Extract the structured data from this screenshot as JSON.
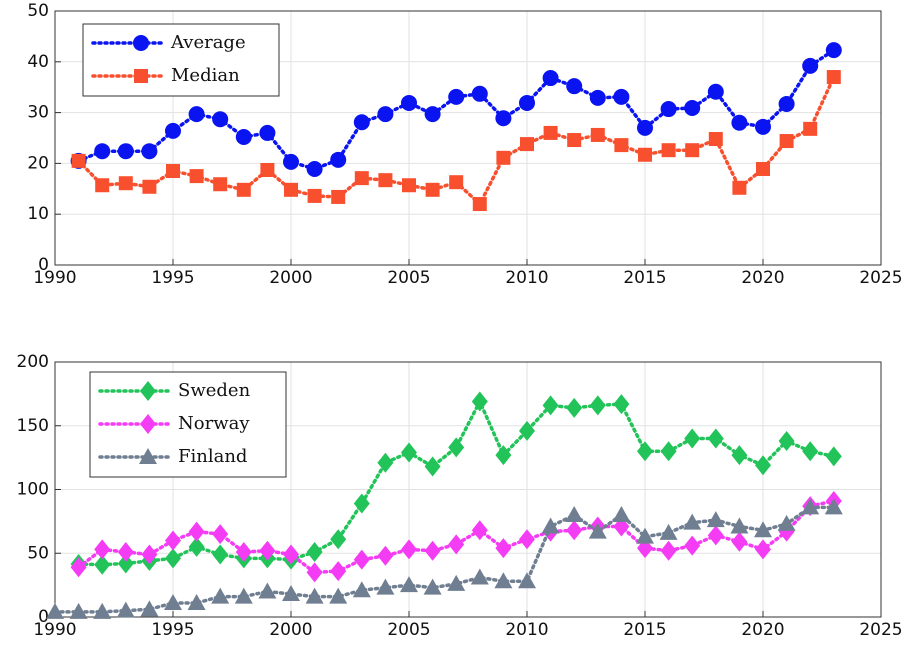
{
  "chart_data": [
    {
      "type": "line",
      "grid": true,
      "legend": "upper left",
      "x": [
        1991,
        1992,
        1993,
        1994,
        1995,
        1996,
        1997,
        1998,
        1999,
        2000,
        2001,
        2002,
        2003,
        2004,
        2005,
        2006,
        2007,
        2008,
        2009,
        2010,
        2011,
        2012,
        2013,
        2014,
        2015,
        2016,
        2017,
        2018,
        2019,
        2020,
        2021,
        2022,
        2023
      ],
      "xlim": [
        1990,
        2025
      ],
      "xticks": [
        1990,
        1995,
        2000,
        2005,
        2010,
        2015,
        2020,
        2025
      ],
      "ylim": [
        0,
        50
      ],
      "yticks": [
        0,
        10,
        20,
        30,
        40,
        50
      ],
      "series": [
        {
          "name": "Average",
          "color": "#0a14f0",
          "marker": "circle",
          "values": [
            20.5,
            22.4,
            22.4,
            22.4,
            26.4,
            29.7,
            28.7,
            25.2,
            26,
            20.3,
            18.9,
            20.7,
            28.1,
            29.7,
            31.9,
            29.7,
            33.1,
            33.7,
            28.9,
            31.9,
            36.8,
            35.2,
            32.9,
            33.1,
            27,
            30.7,
            30.9,
            34.1,
            28,
            27.2,
            31.7,
            39.2,
            42.3
          ]
        },
        {
          "name": "Median",
          "color": "#f8502e",
          "marker": "square",
          "values": [
            20.5,
            15.7,
            16.1,
            15.4,
            18.5,
            17.5,
            15.9,
            14.8,
            18.7,
            14.8,
            13.6,
            13.4,
            17.1,
            16.7,
            15.7,
            14.8,
            16.3,
            12,
            21.1,
            23.8,
            26,
            24.6,
            25.6,
            23.6,
            21.7,
            22.6,
            22.6,
            24.8,
            15.2,
            18.9,
            24.4,
            26.8,
            37
          ]
        }
      ]
    },
    {
      "type": "line",
      "grid": true,
      "legend": "upper left",
      "x": [
        1990,
        1991,
        1992,
        1993,
        1994,
        1995,
        1996,
        1997,
        1998,
        1999,
        2000,
        2001,
        2002,
        2003,
        2004,
        2005,
        2006,
        2007,
        2008,
        2009,
        2010,
        2011,
        2012,
        2013,
        2014,
        2015,
        2016,
        2017,
        2018,
        2019,
        2020,
        2021,
        2022,
        2023
      ],
      "xlim": [
        1990,
        2025
      ],
      "xticks": [
        1990,
        1995,
        2000,
        2005,
        2010,
        2015,
        2020,
        2025
      ],
      "ylim": [
        0,
        200
      ],
      "yticks": [
        0,
        50,
        100,
        150,
        200
      ],
      "series": [
        {
          "name": "Sweden",
          "color": "#22c45a",
          "marker": "diamond",
          "values": [
            null,
            41.6,
            41,
            42,
            44,
            46,
            55,
            49,
            46,
            46,
            45,
            51,
            61,
            89,
            121,
            129,
            118,
            133,
            169,
            127,
            146,
            166,
            164,
            166,
            167,
            130,
            130,
            140,
            140,
            127,
            119,
            138,
            130,
            126
          ]
        },
        {
          "name": "Norway",
          "color": "#f53cf5",
          "marker": "diamond",
          "values": [
            null,
            39,
            53,
            51,
            49,
            60,
            67,
            65,
            51,
            52,
            49,
            35,
            36,
            45,
            48,
            53,
            52,
            57,
            68,
            54,
            61,
            67,
            68,
            71,
            71,
            54,
            52,
            56,
            64,
            59,
            53,
            67,
            87,
            91
          ]
        },
        {
          "name": "Finland",
          "color": "#6f7f91",
          "marker": "triangle",
          "values": [
            4,
            4,
            4,
            5,
            6,
            11,
            11,
            16,
            16,
            20,
            18,
            16,
            16,
            21,
            23,
            25,
            23,
            26,
            31,
            28,
            28,
            71,
            80,
            67,
            80,
            63,
            66,
            74,
            76,
            71,
            68,
            73,
            86,
            86
          ]
        }
      ]
    }
  ]
}
